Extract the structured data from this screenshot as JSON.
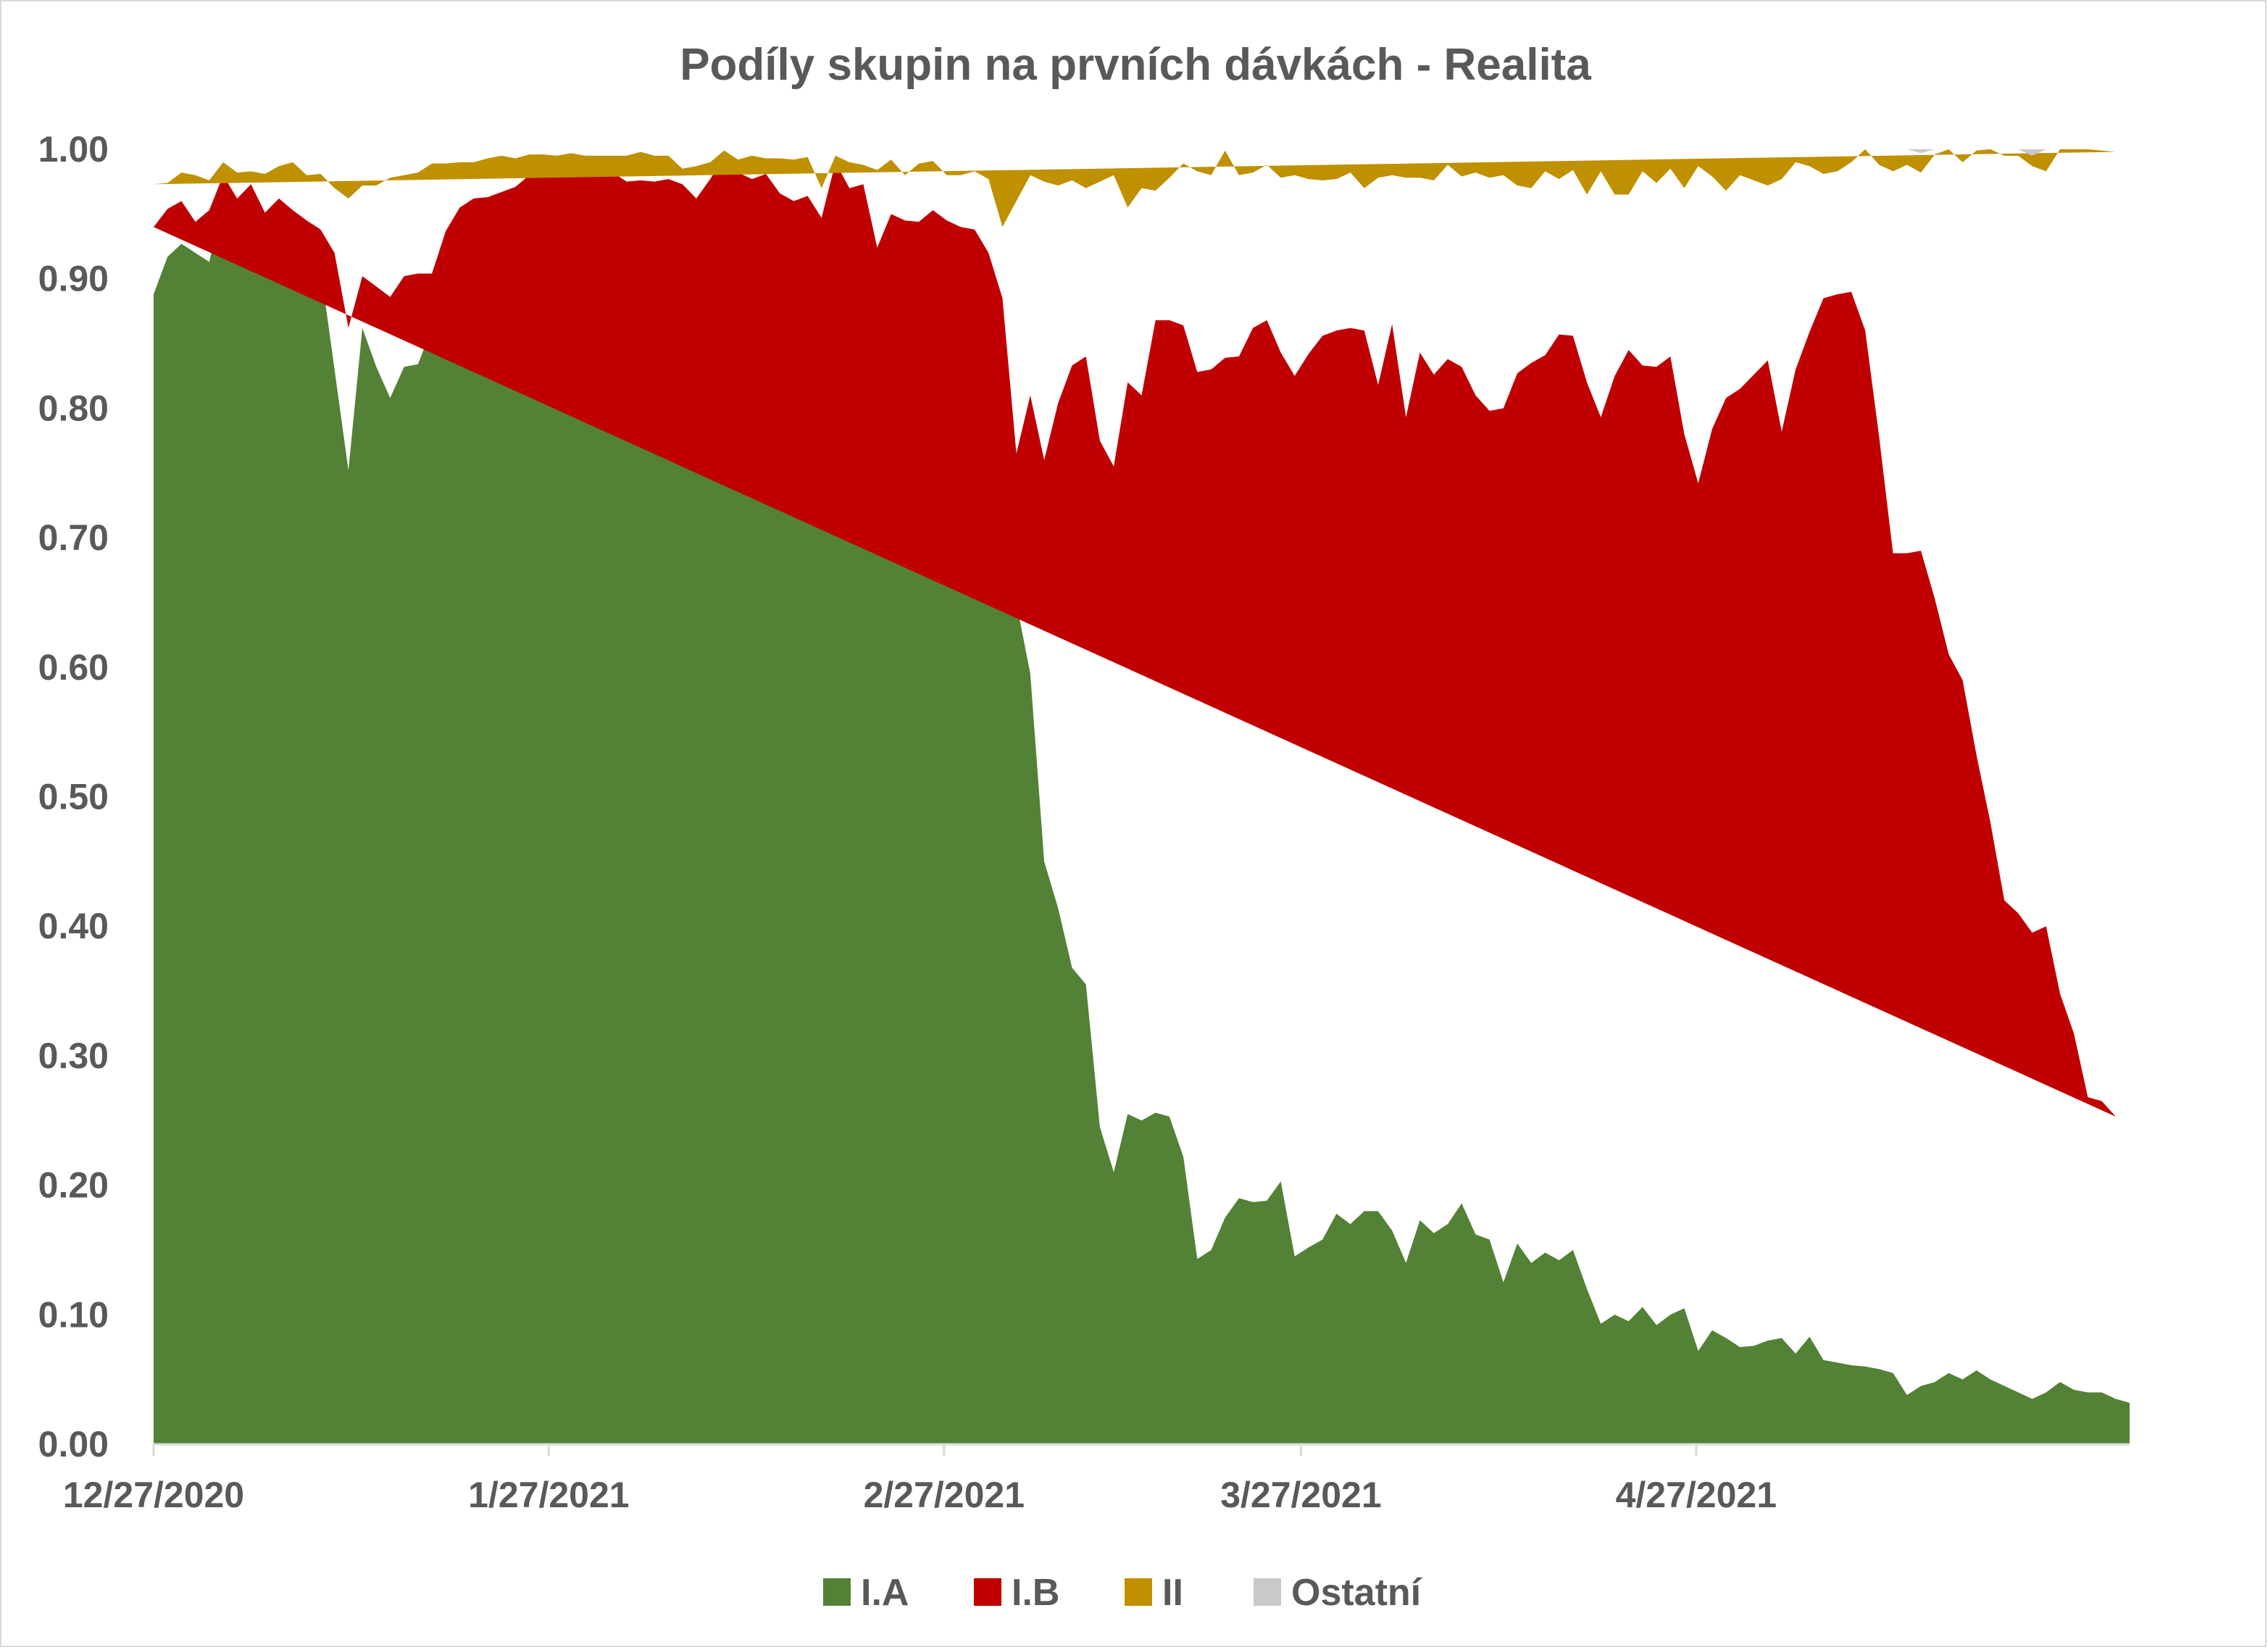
{
  "chart_data": {
    "type": "area",
    "stacked": true,
    "title": "Podíly skupin na prvních dávkách - Realita",
    "xlabel": "",
    "ylabel": "",
    "x_start": "12/27/2020",
    "x_end": "5/31/2021",
    "ylim": [
      0,
      1
    ],
    "yticks": [
      "0.00",
      "0.10",
      "0.20",
      "0.30",
      "0.40",
      "0.50",
      "0.60",
      "0.70",
      "0.80",
      "0.90",
      "1.00"
    ],
    "xticks": [
      "12/27/2020",
      "1/27/2021",
      "2/27/2021",
      "3/27/2021",
      "4/27/2021"
    ],
    "grid": false,
    "legend_position": "bottom",
    "series": [
      {
        "name": "I.A",
        "color": "#538135",
        "values": [
          0.888,
          0.917,
          0.927,
          0.92,
          0.913,
          0.962,
          0.952,
          0.958,
          0.931,
          0.94,
          0.928,
          0.902,
          0.908,
          0.83,
          0.752,
          0.862,
          0.832,
          0.808,
          0.832,
          0.834,
          0.862,
          0.905,
          0.921,
          0.937,
          0.942,
          0.945,
          0.956,
          0.977,
          0.962,
          0.972,
          0.975,
          0.972,
          0.973,
          0.97,
          0.963,
          0.955,
          0.95,
          0.954,
          0.948,
          0.93,
          0.95,
          0.966,
          0.952,
          0.937,
          0.936,
          0.926,
          0.915,
          0.927,
          0.917,
          0.97,
          0.955,
          0.943,
          0.882,
          0.9,
          0.89,
          0.886,
          0.885,
          0.887,
          0.855,
          0.88,
          0.84,
          0.76,
          0.65,
          0.595,
          0.45,
          0.414,
          0.368,
          0.355,
          0.245,
          0.21,
          0.255,
          0.25,
          0.256,
          0.253,
          0.222,
          0.143,
          0.15,
          0.175,
          0.19,
          0.187,
          0.188,
          0.203,
          0.145,
          0.152,
          0.158,
          0.178,
          0.17,
          0.18,
          0.18,
          0.165,
          0.14,
          0.173,
          0.163,
          0.17,
          0.186,
          0.162,
          0.158,
          0.125,
          0.155,
          0.14,
          0.148,
          0.142,
          0.15,
          0.12,
          0.093,
          0.1,
          0.095,
          0.106,
          0.092,
          0.1,
          0.105,
          0.072,
          0.088,
          0.082,
          0.075,
          0.076,
          0.08,
          0.082,
          0.07,
          0.083,
          0.065,
          0.063,
          0.061,
          0.06,
          0.058,
          0.055,
          0.038,
          0.045,
          0.048,
          0.055,
          0.05,
          0.057,
          0.05,
          0.045,
          0.04,
          0.035,
          0.04,
          0.048,
          0.042,
          0.04,
          0.04,
          0.035,
          0.032
        ]
      },
      {
        "name": "I.B",
        "color": "#c00000",
        "values": [
          0.052,
          0.037,
          0.033,
          0.024,
          0.04,
          0.018,
          0.01,
          0.015,
          0.02,
          0.022,
          0.025,
          0.043,
          0.03,
          0.09,
          0.11,
          0.04,
          0.062,
          0.078,
          0.07,
          0.07,
          0.042,
          0.032,
          0.034,
          0.025,
          0.021,
          0.022,
          0.015,
          0.003,
          0.02,
          0.01,
          0.009,
          0.01,
          0.012,
          0.012,
          0.012,
          0.021,
          0.025,
          0.023,
          0.025,
          0.032,
          0.027,
          0.028,
          0.03,
          0.04,
          0.045,
          0.04,
          0.045,
          0.037,
          0.03,
          0.02,
          0.015,
          0.03,
          0.042,
          0.05,
          0.055,
          0.058,
          0.068,
          0.058,
          0.085,
          0.058,
          0.08,
          0.125,
          0.115,
          0.215,
          0.31,
          0.39,
          0.465,
          0.485,
          0.53,
          0.545,
          0.565,
          0.56,
          0.612,
          0.615,
          0.642,
          0.685,
          0.68,
          0.664,
          0.65,
          0.675,
          0.68,
          0.64,
          0.68,
          0.69,
          0.698,
          0.682,
          0.692,
          0.68,
          0.638,
          0.7,
          0.653,
          0.67,
          0.663,
          0.668,
          0.646,
          0.648,
          0.64,
          0.675,
          0.672,
          0.695,
          0.693,
          0.715,
          0.706,
          0.7,
          0.7,
          0.725,
          0.75,
          0.727,
          0.74,
          0.74,
          0.675,
          0.67,
          0.696,
          0.726,
          0.74,
          0.75,
          0.757,
          0.7,
          0.76,
          0.776,
          0.82,
          0.825,
          0.829,
          0.8,
          0.72,
          0.633,
          0.65,
          0.645,
          0.605,
          0.555,
          0.54,
          0.475,
          0.43,
          0.375,
          0.37,
          0.36,
          0.36,
          0.3,
          0.275,
          0.228,
          0.225,
          0.218
        ]
      },
      {
        "name": "II",
        "color": "#bf9000",
        "values": [
          0.033,
          0.02,
          0.022,
          0.036,
          0.023,
          0.01,
          0.02,
          0.01,
          0.03,
          0.025,
          0.037,
          0.035,
          0.043,
          0.05,
          0.1,
          0.07,
          0.078,
          0.092,
          0.078,
          0.078,
          0.085,
          0.052,
          0.035,
          0.028,
          0.03,
          0.028,
          0.022,
          0.016,
          0.014,
          0.013,
          0.013,
          0.013,
          0.01,
          0.013,
          0.02,
          0.022,
          0.02,
          0.018,
          0.012,
          0.025,
          0.013,
          0.005,
          0.01,
          0.018,
          0.012,
          0.027,
          0.032,
          0.03,
          0.023,
          0.005,
          0.02,
          0.015,
          0.06,
          0.042,
          0.035,
          0.045,
          0.038,
          0.035,
          0.04,
          0.045,
          0.057,
          0.055,
          0.195,
          0.17,
          0.215,
          0.168,
          0.143,
          0.13,
          0.2,
          0.225,
          0.135,
          0.16,
          0.1,
          0.11,
          0.125,
          0.155,
          0.15,
          0.16,
          0.14,
          0.12,
          0.12,
          0.135,
          0.155,
          0.135,
          0.12,
          0.117,
          0.12,
          0.11,
          0.16,
          0.115,
          0.185,
          0.135,
          0.15,
          0.15,
          0.147,
          0.172,
          0.18,
          0.18,
          0.145,
          0.135,
          0.142,
          0.12,
          0.128,
          0.145,
          0.19,
          0.14,
          0.12,
          0.15,
          0.142,
          0.145,
          0.19,
          0.245,
          0.195,
          0.16,
          0.165,
          0.15,
          0.135,
          0.195,
          0.16,
          0.128,
          0.096,
          0.095,
          0.1,
          0.14,
          0.21,
          0.295,
          0.3,
          0.292,
          0.343,
          0.39,
          0.4,
          0.467,
          0.52,
          0.575,
          0.585,
          0.592,
          0.583,
          0.657,
          0.685,
          0.732,
          0.734,
          0.745
        ]
      },
      {
        "name": "Ostatní",
        "color": "#c9c9c9",
        "values": [
          0.027,
          0.026,
          0.018,
          0.02,
          0.024,
          0.01,
          0.018,
          0.017,
          0.019,
          0.013,
          0.01,
          0.02,
          0.019,
          0.03,
          0.038,
          0.028,
          0.028,
          0.022,
          0.02,
          0.018,
          0.011,
          0.011,
          0.01,
          0.01,
          0.007,
          0.005,
          0.007,
          0.004,
          0.004,
          0.005,
          0.003,
          0.005,
          0.005,
          0.005,
          0.005,
          0.002,
          0.005,
          0.005,
          0.015,
          0.013,
          0.01,
          0.001,
          0.008,
          0.005,
          0.007,
          0.007,
          0.008,
          0.006,
          0.03,
          0.005,
          0.01,
          0.012,
          0.016,
          0.008,
          0.02,
          0.011,
          0.009,
          0.02,
          0.02,
          0.017,
          0.023,
          0.06,
          0.04,
          0.02,
          0.025,
          0.028,
          0.024,
          0.03,
          0.025,
          0.02,
          0.045,
          0.03,
          0.032,
          0.022,
          0.011,
          0.017,
          0.02,
          0.001,
          0.02,
          0.018,
          0.012,
          0.022,
          0.02,
          0.023,
          0.024,
          0.023,
          0.018,
          0.03,
          0.022,
          0.02,
          0.022,
          0.022,
          0.024,
          0.012,
          0.021,
          0.018,
          0.022,
          0.02,
          0.028,
          0.03,
          0.017,
          0.023,
          0.016,
          0.035,
          0.017,
          0.035,
          0.035,
          0.017,
          0.026,
          0.015,
          0.03,
          0.013,
          0.021,
          0.032,
          0.02,
          0.024,
          0.028,
          0.023,
          0.01,
          0.013,
          0.019,
          0.017,
          0.01,
          0.0,
          0.012,
          0.017,
          0.012,
          0.015,
          0.004,
          0.0,
          0.01,
          0.008,
          0.005,
          0.01,
          0.005,
          0.008,
          0.017,
          0.008,
          0.02,
          0.007,
          0.01,
          0.015
        ]
      }
    ]
  }
}
